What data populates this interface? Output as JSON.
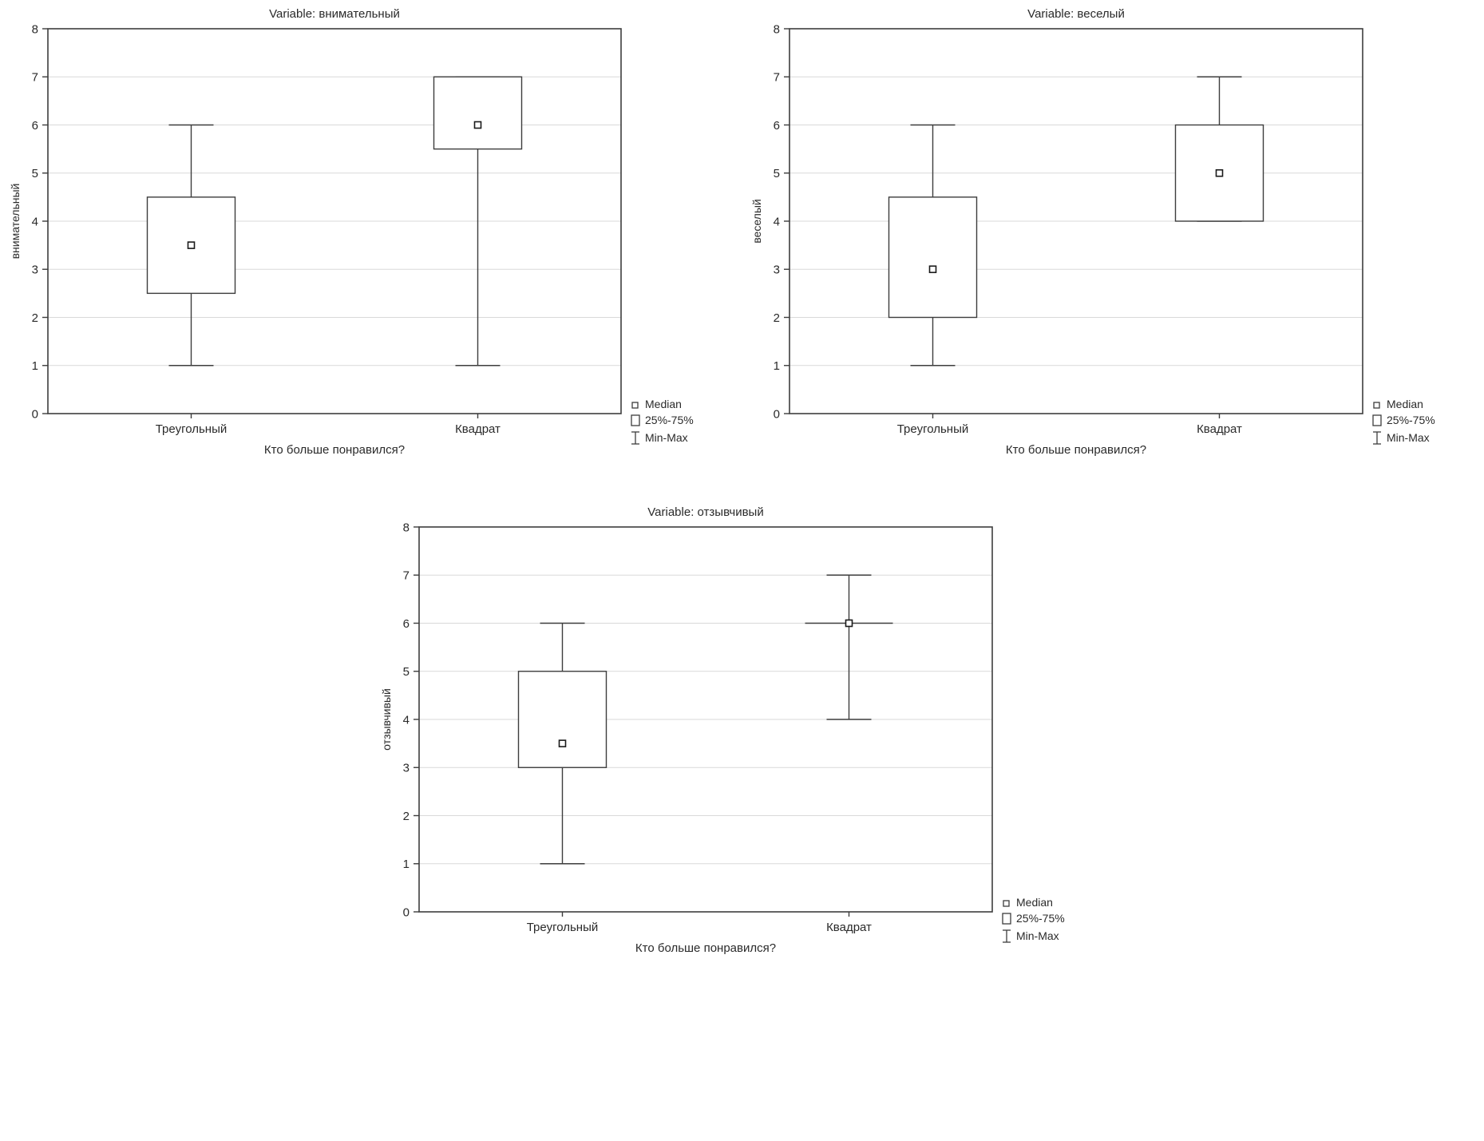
{
  "style": {
    "line_color": "#3d3d3d",
    "grid_color": "#d9d9d9",
    "marker_stroke": "#1a1a1a",
    "background": "#ffffff"
  },
  "chart_data": [
    {
      "type": "box",
      "title": "Variable: внимательный",
      "ylabel": "внимательный",
      "xlabel": "Кто больше понравился?",
      "categories": [
        "Треугольный",
        "Квадрат"
      ],
      "ylim": [
        0,
        8
      ],
      "yticks": [
        0,
        1,
        2,
        3,
        4,
        5,
        6,
        7,
        8
      ],
      "grid": "horizontal",
      "legend": [
        "Median",
        "25%-75%",
        "Min-Max"
      ],
      "legend_position": "bottom-right-outside",
      "series": [
        {
          "category": "Треугольный",
          "min": 1,
          "q1": 2.5,
          "median": 3.5,
          "q3": 4.5,
          "max": 6
        },
        {
          "category": "Квадрат",
          "min": 1,
          "q1": 5.5,
          "median": 6,
          "q3": 7,
          "max": 7
        }
      ]
    },
    {
      "type": "box",
      "title": "Variable: веселый",
      "ylabel": "веселый",
      "xlabel": "Кто больше понравился?",
      "categories": [
        "Треугольный",
        "Квадрат"
      ],
      "ylim": [
        0,
        8
      ],
      "yticks": [
        0,
        1,
        2,
        3,
        4,
        5,
        6,
        7,
        8
      ],
      "grid": "horizontal",
      "legend": [
        "Median",
        "25%-75%",
        "Min-Max"
      ],
      "legend_position": "bottom-right-outside",
      "series": [
        {
          "category": "Треугольный",
          "min": 1,
          "q1": 2,
          "median": 3,
          "q3": 4.5,
          "max": 6
        },
        {
          "category": "Квадрат",
          "min": 4,
          "q1": 4,
          "median": 5,
          "q3": 6,
          "max": 7
        }
      ]
    },
    {
      "type": "box",
      "title": "Variable: отзывчивый",
      "ylabel": "отзывчивый",
      "xlabel": "Кто больше понравился?",
      "categories": [
        "Треугольный",
        "Квадрат"
      ],
      "ylim": [
        0,
        8
      ],
      "yticks": [
        0,
        1,
        2,
        3,
        4,
        5,
        6,
        7,
        8
      ],
      "grid": "horizontal",
      "legend": [
        "Median",
        "25%-75%",
        "Min-Max"
      ],
      "legend_position": "bottom-right-outside",
      "series": [
        {
          "category": "Треугольный",
          "min": 1,
          "q1": 3,
          "median": 3.5,
          "q3": 5,
          "max": 6
        },
        {
          "category": "Квадрат",
          "min": 4,
          "q1": 6,
          "median": 6,
          "q3": 6,
          "max": 7
        }
      ]
    }
  ]
}
